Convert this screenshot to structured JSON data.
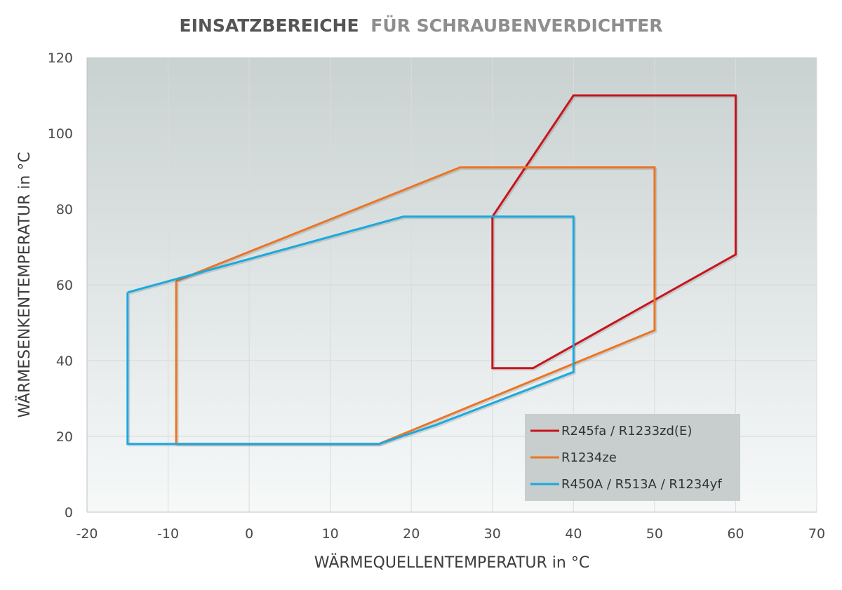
{
  "chart_data": {
    "type": "line",
    "title_part1": "EINSATZBEREICHE",
    "title_part2": "FÜR SCHRAUBENVERDICHTER",
    "title_color1": "#555555",
    "title_color2": "#8e8e8e",
    "xlabel": "WÄRMEQUELLENTEMPERATUR in °C",
    "ylabel": "WÄRMESENKENTEMPERATUR in °C",
    "xlim": [
      -20,
      70
    ],
    "ylim": [
      0,
      120
    ],
    "xticks": [
      -20,
      -10,
      0,
      10,
      20,
      30,
      40,
      50,
      60,
      70
    ],
    "yticks": [
      0,
      20,
      40,
      60,
      80,
      100,
      120
    ],
    "grid": true,
    "background_gradient": [
      "#c9d1d1",
      "#f7f9f9"
    ],
    "legend_position": "bottom-right",
    "series": [
      {
        "name": "R245fa / R1233zd(E)",
        "color": "#c8141c",
        "points": [
          [
            30,
            78
          ],
          [
            40,
            110
          ],
          [
            60,
            110
          ],
          [
            60,
            68
          ],
          [
            35,
            38
          ],
          [
            30,
            38
          ],
          [
            30,
            78
          ]
        ]
      },
      {
        "name": "R1234ze",
        "color": "#ec7524",
        "points": [
          [
            -9,
            61
          ],
          [
            26,
            91
          ],
          [
            50,
            91
          ],
          [
            50,
            48
          ],
          [
            16,
            18
          ],
          [
            -9,
            18
          ],
          [
            -9,
            61
          ]
        ]
      },
      {
        "name": "R450A / R513A / R1234yf",
        "color": "#1aa9df",
        "points": [
          [
            -15,
            58
          ],
          [
            19,
            78
          ],
          [
            40,
            78
          ],
          [
            40,
            37
          ],
          [
            23,
            23
          ],
          [
            16,
            18
          ],
          [
            -15,
            18
          ],
          [
            -15,
            58
          ]
        ]
      }
    ]
  }
}
